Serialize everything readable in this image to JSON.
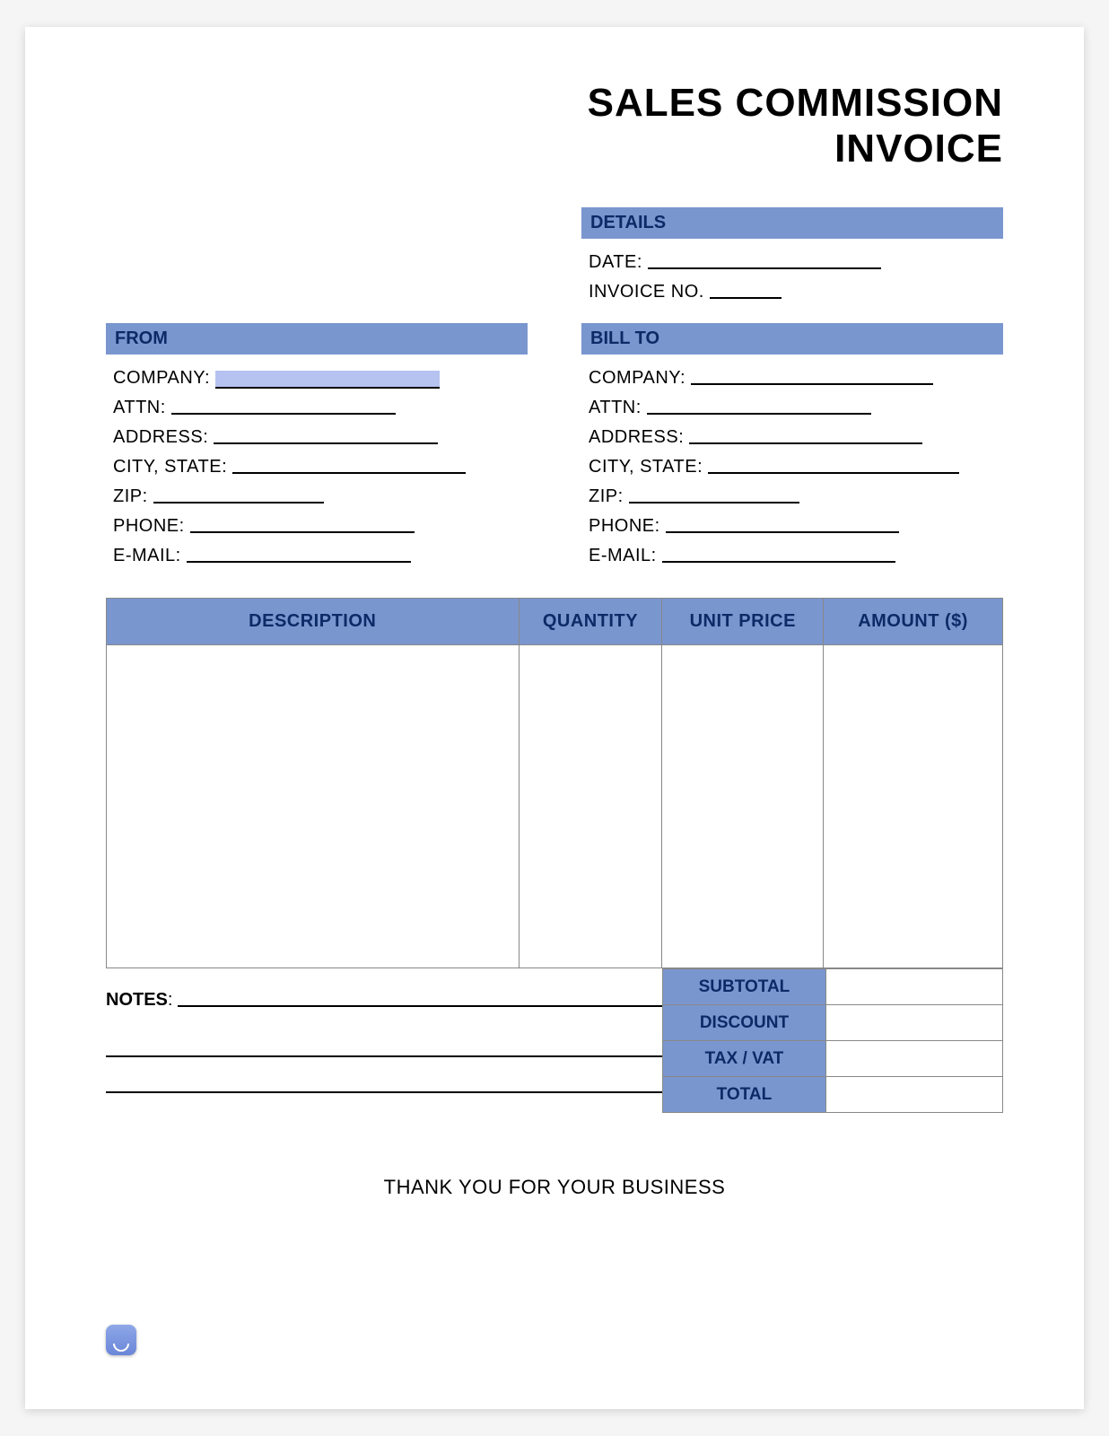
{
  "colors": {
    "header_bg": "#7a96cf",
    "header_text": "#0b2a66",
    "page_bg": "#ffffff",
    "line": "#000000",
    "cell_border": "#888888",
    "highlight": "#b6c2f0"
  },
  "typography": {
    "title_fontsize": 44,
    "label_fontsize": 20,
    "table_header_fontsize": 20
  },
  "title_line1": "SALES COMMISSION",
  "title_line2": "INVOICE",
  "details": {
    "header": "DETAILS",
    "date_label": "DATE:",
    "date_value": "",
    "date_line_width": 260,
    "invoice_label": "INVOICE NO.",
    "invoice_value": "",
    "invoice_line_width": 80
  },
  "from": {
    "header": "FROM",
    "fields": [
      {
        "label": "COMPANY:",
        "value": "",
        "line_width": 250,
        "highlight": true
      },
      {
        "label": "ATTN:",
        "value": "",
        "line_width": 250,
        "highlight": false
      },
      {
        "label": "ADDRESS:",
        "value": "",
        "line_width": 250,
        "highlight": false
      },
      {
        "label": "CITY, STATE:",
        "value": "",
        "line_width": 260,
        "highlight": false
      },
      {
        "label": "ZIP:",
        "value": "",
        "line_width": 190,
        "highlight": false
      },
      {
        "label": "PHONE:",
        "value": "",
        "line_width": 250,
        "highlight": false
      },
      {
        "label": "E-MAIL:",
        "value": "",
        "line_width": 250,
        "highlight": false
      }
    ]
  },
  "billto": {
    "header": "BILL TO",
    "fields": [
      {
        "label": "COMPANY:",
        "value": "",
        "line_width": 270,
        "highlight": false
      },
      {
        "label": "ATTN:",
        "value": "",
        "line_width": 250,
        "highlight": false
      },
      {
        "label": "ADDRESS:",
        "value": "",
        "line_width": 260,
        "highlight": false
      },
      {
        "label": "CITY, STATE:",
        "value": "",
        "line_width": 280,
        "highlight": false
      },
      {
        "label": "ZIP:",
        "value": "",
        "line_width": 190,
        "highlight": false
      },
      {
        "label": "PHONE:",
        "value": "",
        "line_width": 260,
        "highlight": false
      },
      {
        "label": "E-MAIL:",
        "value": "",
        "line_width": 260,
        "highlight": false
      }
    ]
  },
  "items_table": {
    "type": "table",
    "columns": [
      "DESCRIPTION",
      "QUANTITY",
      "UNIT PRICE",
      "AMOUNT ($)"
    ],
    "column_widths_pct": [
      46,
      16,
      18,
      20
    ],
    "rows": [
      [
        "",
        "",
        "",
        ""
      ]
    ],
    "body_row_height": 360,
    "header_bg": "#7a96cf",
    "header_color": "#0b2a66",
    "border_color": "#888888"
  },
  "notes": {
    "label": "NOTES",
    "colon": ":",
    "lines": [
      "",
      "",
      ""
    ]
  },
  "totals": {
    "rows": [
      {
        "label": "SUBTOTAL",
        "value": ""
      },
      {
        "label": "DISCOUNT",
        "value": ""
      },
      {
        "label": "TAX / VAT",
        "value": ""
      },
      {
        "label": "TOTAL",
        "value": ""
      }
    ],
    "label_bg": "#7a96cf",
    "label_color": "#0b2a66"
  },
  "footer_thanks": "THANK YOU FOR YOUR BUSINESS"
}
